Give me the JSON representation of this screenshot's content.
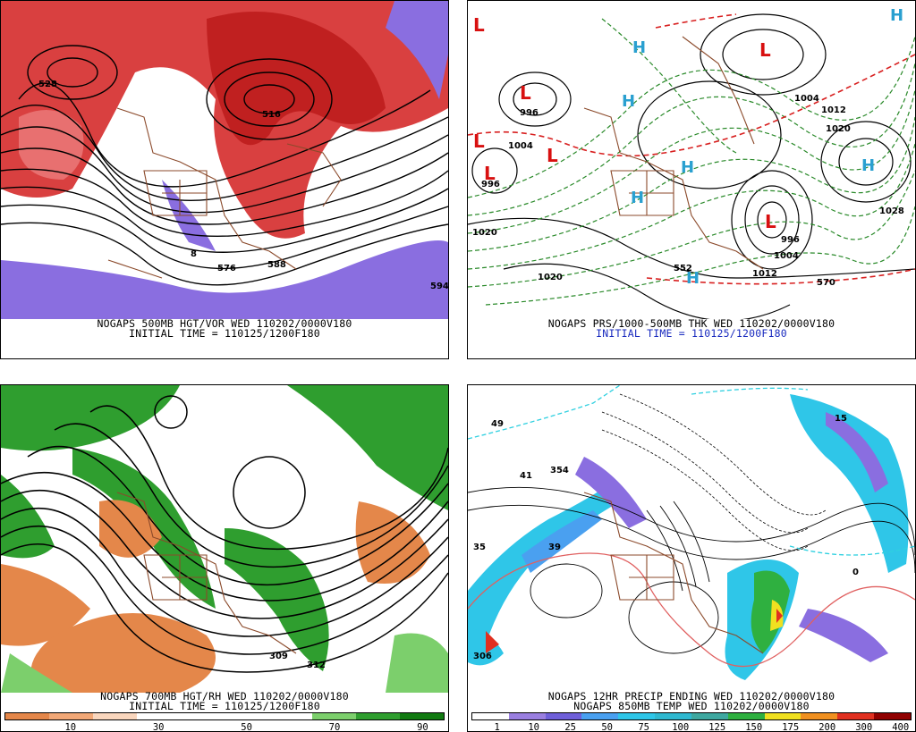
{
  "panels": {
    "p1": {
      "caption1": "NOGAPS 500MB HGT/VOR WED 110202/0000V180",
      "caption2": "INITIAL TIME = 110125/1200F180",
      "labels": [
        "576",
        "588",
        "528",
        "516",
        "594",
        "8"
      ]
    },
    "p2": {
      "caption1": "NOGAPS PRS/1000-500MB THK WED 110202/0000V180",
      "caption2": "INITIAL TIME = 110125/1200F180",
      "labels": [
        "996",
        "1004",
        "996",
        "1004",
        "1012",
        "1020",
        "1020",
        "1020",
        "1028",
        "570",
        "552",
        "1012",
        "1004",
        "996"
      ],
      "lows": [
        "L",
        "L",
        "L",
        "L",
        "L",
        "L",
        "L"
      ],
      "highs": [
        "H",
        "H",
        "H",
        "H",
        "H",
        "H",
        "H"
      ]
    },
    "p3": {
      "caption1": "NOGAPS 700MB HGT/RH WED 110202/0000V180",
      "caption2": "INITIAL TIME = 110125/1200F180",
      "labels": [
        "309",
        "312"
      ],
      "colorbar": {
        "ticks": [
          "10",
          "30",
          "50",
          "70",
          "90"
        ],
        "colors": [
          "#e4874a",
          "#f2a877",
          "#f9d6bd",
          "#ffffff",
          "#ffffff",
          "#ffffff",
          "#ffffff",
          "#7ccf6c",
          "#2f9e2f",
          "#117a11"
        ]
      }
    },
    "p4": {
      "caption1": "NOGAPS 12HR PRECIP ENDING WED 110202/0000V180",
      "caption2": "NOGAPS 850MB TEMP WED 110202/0000V180",
      "labels": [
        "49",
        "41",
        "354",
        "39",
        "35",
        "306",
        "15",
        "0"
      ],
      "colorbar": {
        "ticks": [
          "1",
          "10",
          "25",
          "50",
          "75",
          "100",
          "125",
          "150",
          "175",
          "200",
          "300",
          "400"
        ],
        "colors": [
          "#ffffff",
          "#9a7fe0",
          "#6f5fd9",
          "#4aa0f0",
          "#2fc6e8",
          "#2fb8d0",
          "#3fa8a0",
          "#2fb040",
          "#f0e020",
          "#f09020",
          "#e03020",
          "#900000"
        ]
      }
    }
  }
}
